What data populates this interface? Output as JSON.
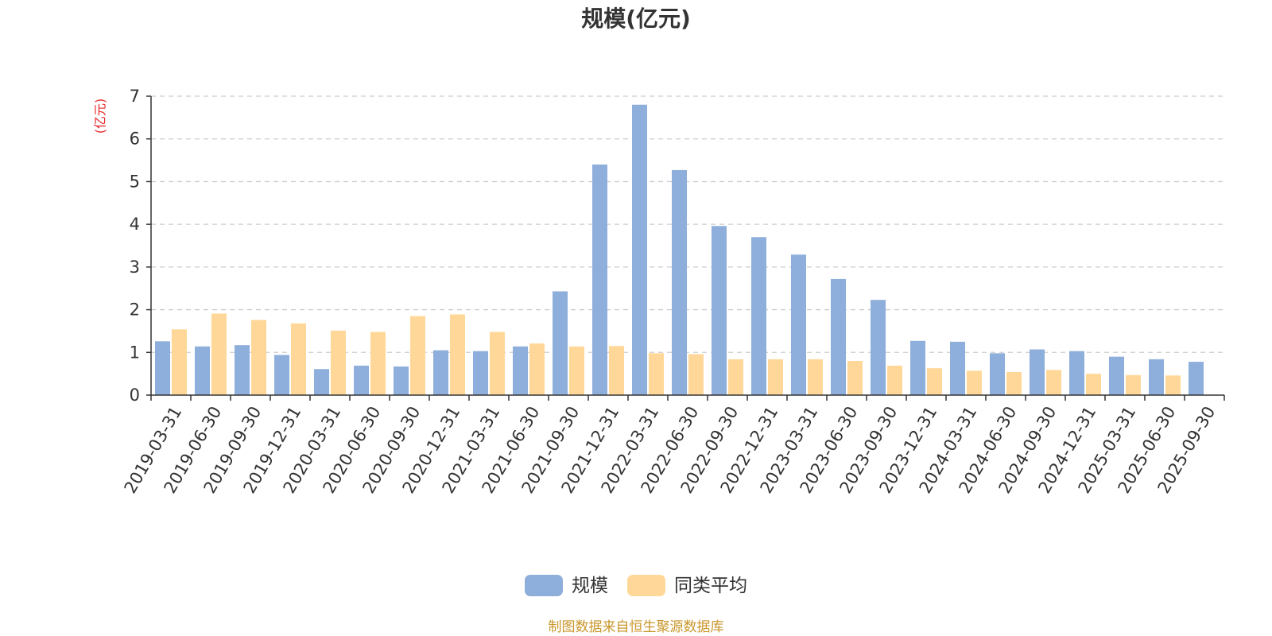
{
  "chart_data": {
    "type": "bar",
    "title": "规模(亿元)",
    "y_unit": "(亿元)",
    "ylim": [
      0,
      7
    ],
    "yticks": [
      0,
      1,
      2,
      3,
      4,
      5,
      6,
      7
    ],
    "grid": true,
    "legend_position": "bottom-center",
    "categories": [
      "2019-03-31",
      "2019-06-30",
      "2019-09-30",
      "2019-12-31",
      "2020-03-31",
      "2020-06-30",
      "2020-09-30",
      "2020-12-31",
      "2021-03-31",
      "2021-06-30",
      "2021-09-30",
      "2021-12-31",
      "2022-03-31",
      "2022-06-30",
      "2022-09-30",
      "2022-12-31",
      "2023-03-31",
      "2023-06-30",
      "2023-09-30",
      "2023-12-31",
      "2024-03-31",
      "2024-06-30",
      "2024-09-30",
      "2024-12-31",
      "2025-03-31",
      "2025-06-30",
      "2025-09-30"
    ],
    "series": [
      {
        "name": "规模",
        "color": "#8eaedb",
        "values": [
          1.26,
          1.14,
          1.17,
          0.94,
          0.61,
          0.69,
          0.67,
          1.05,
          1.03,
          1.14,
          2.43,
          5.4,
          6.8,
          5.27,
          3.96,
          3.7,
          3.29,
          2.72,
          2.23,
          1.27,
          1.25,
          0.98,
          1.07,
          1.03,
          0.9,
          0.84,
          0.78
        ]
      },
      {
        "name": "同类平均",
        "color": "#ffd899",
        "values": [
          1.54,
          1.91,
          1.76,
          1.68,
          1.51,
          1.48,
          1.85,
          1.89,
          1.48,
          1.21,
          1.14,
          1.15,
          0.98,
          0.96,
          0.84,
          0.84,
          0.84,
          0.8,
          0.69,
          0.63,
          0.57,
          0.54,
          0.59,
          0.5,
          0.47,
          0.46,
          null
        ]
      }
    ]
  },
  "source": "制图数据来自恒生聚源数据库"
}
